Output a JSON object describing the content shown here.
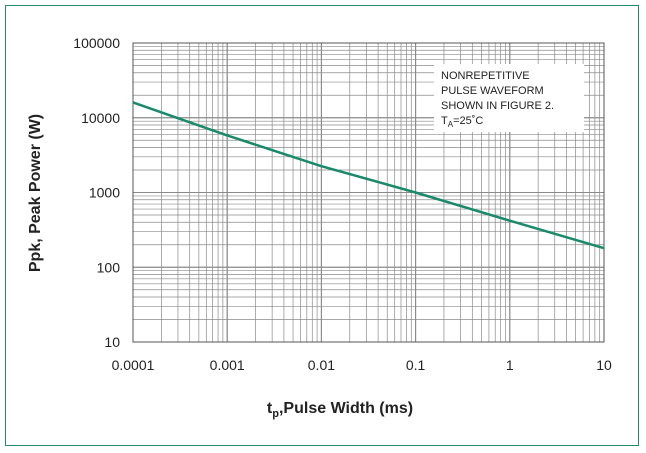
{
  "chart_data": {
    "type": "line",
    "x_scale": "log",
    "y_scale": "log",
    "xlim": [
      0.0001,
      10
    ],
    "ylim": [
      10,
      100000
    ],
    "x_ticks": [
      "0.0001",
      "0.001",
      "0.01",
      "0.1",
      "1",
      "10"
    ],
    "y_ticks": [
      "10",
      "100",
      "1000",
      "10000",
      "100000"
    ],
    "xlabel_main": "t",
    "xlabel_sub": "p",
    "xlabel_rest": ",Pulse Width (ms)",
    "ylabel": "Ppk, Peak Power (W)",
    "grid": true,
    "series": [
      {
        "color": "#1a8a6a",
        "x": [
          0.0001,
          0.001,
          0.01,
          0.1,
          1,
          10
        ],
        "y": [
          16000,
          5800,
          2250,
          1000,
          420,
          180
        ]
      }
    ],
    "annotation": {
      "lines": [
        "NONREPETITIVE",
        "PULSE WAVEFORM",
        "SHOWN IN FIGURE 2."
      ],
      "temp_main": "T",
      "temp_sub": "A",
      "temp_rest": "=25˚C"
    }
  },
  "colors": {
    "frame": "#1f8a6d",
    "grid": "#8a8a8a",
    "line": "#1a8a6a"
  }
}
